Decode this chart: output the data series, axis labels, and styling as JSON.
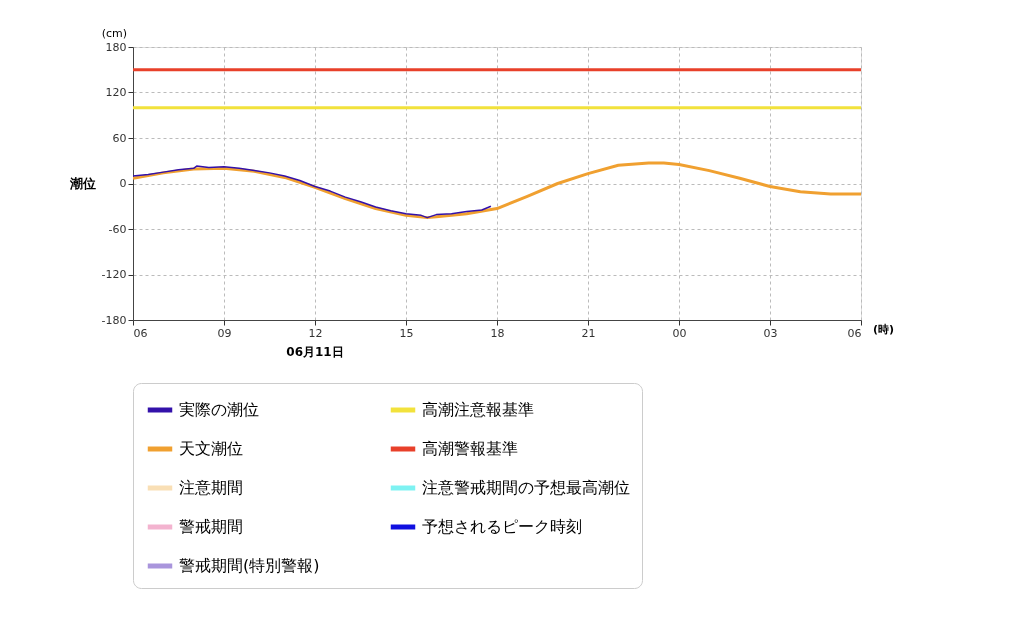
{
  "chart_data": {
    "type": "line",
    "ylabel": "潮位",
    "xlabel": "(時)",
    "annotations": [
      "(cm)",
      "06月11日"
    ],
    "xlim": [
      6,
      30
    ],
    "ylim": [
      -180,
      180
    ],
    "xticks": [
      {
        "value": 6,
        "label": "06"
      },
      {
        "value": 9,
        "label": "09"
      },
      12,
      15,
      18,
      21,
      {
        "value": 24,
        "label": "00"
      },
      {
        "value": 27,
        "label": "03"
      },
      {
        "value": 30,
        "label": "06"
      }
    ],
    "yticks": [
      -180,
      -120,
      -60,
      0,
      60,
      120,
      180
    ],
    "grid": true,
    "legend": "bottom",
    "line_style": "solid",
    "marker": "none",
    "series": [
      {
        "name": "実際の潮位",
        "color": "#3311aa",
        "x": [
          6,
          6.5,
          7,
          7.5,
          8,
          8.1,
          8.5,
          9,
          9.5,
          10,
          10.5,
          11,
          11.5,
          12,
          12.5,
          13,
          13.5,
          14,
          14.5,
          15,
          15.5,
          15.7,
          16,
          16.5,
          17,
          17.5,
          17.8
        ],
        "values": [
          10,
          12,
          15,
          18,
          20,
          23,
          21,
          22,
          20,
          17,
          14,
          10,
          4,
          -4,
          -10,
          -18,
          -24,
          -31,
          -36,
          -40,
          -42,
          -45,
          -41,
          -40,
          -37,
          -35,
          -30
        ]
      },
      {
        "name": "高潮注意報基準",
        "color": "#f2e23c",
        "x": [
          6,
          30
        ],
        "values": [
          100,
          100
        ]
      },
      {
        "name": "天文潮位",
        "color": "#f0a030",
        "x": [
          6,
          7,
          8,
          9,
          10,
          11,
          12,
          13,
          14,
          15,
          15.7,
          16,
          17,
          18,
          19,
          20,
          21,
          22,
          23,
          23.5,
          24,
          25,
          26,
          27,
          28,
          29,
          30
        ],
        "values": [
          7,
          14,
          19,
          20,
          16,
          8,
          -5,
          -20,
          -33,
          -42,
          -45,
          -44,
          -40,
          -33,
          -17,
          0,
          13,
          24,
          27,
          27,
          25,
          17,
          7,
          -4,
          -11,
          -14,
          -14
        ]
      },
      {
        "name": "高潮警報基準",
        "color": "#e8402a",
        "x": [
          6,
          30
        ],
        "values": [
          150,
          150
        ]
      },
      {
        "name": "注意期間",
        "color": "#f9dfb5"
      },
      {
        "name": "注意警戒期間の予想最高潮位",
        "color": "#7ef2f2"
      },
      {
        "name": "警戒期間",
        "color": "#f3b3cf"
      },
      {
        "name": "予想されるピーク時刻",
        "color": "#1010e0"
      },
      {
        "name": "警戒期間(特別警報)",
        "color": "#a995dc"
      }
    ]
  }
}
